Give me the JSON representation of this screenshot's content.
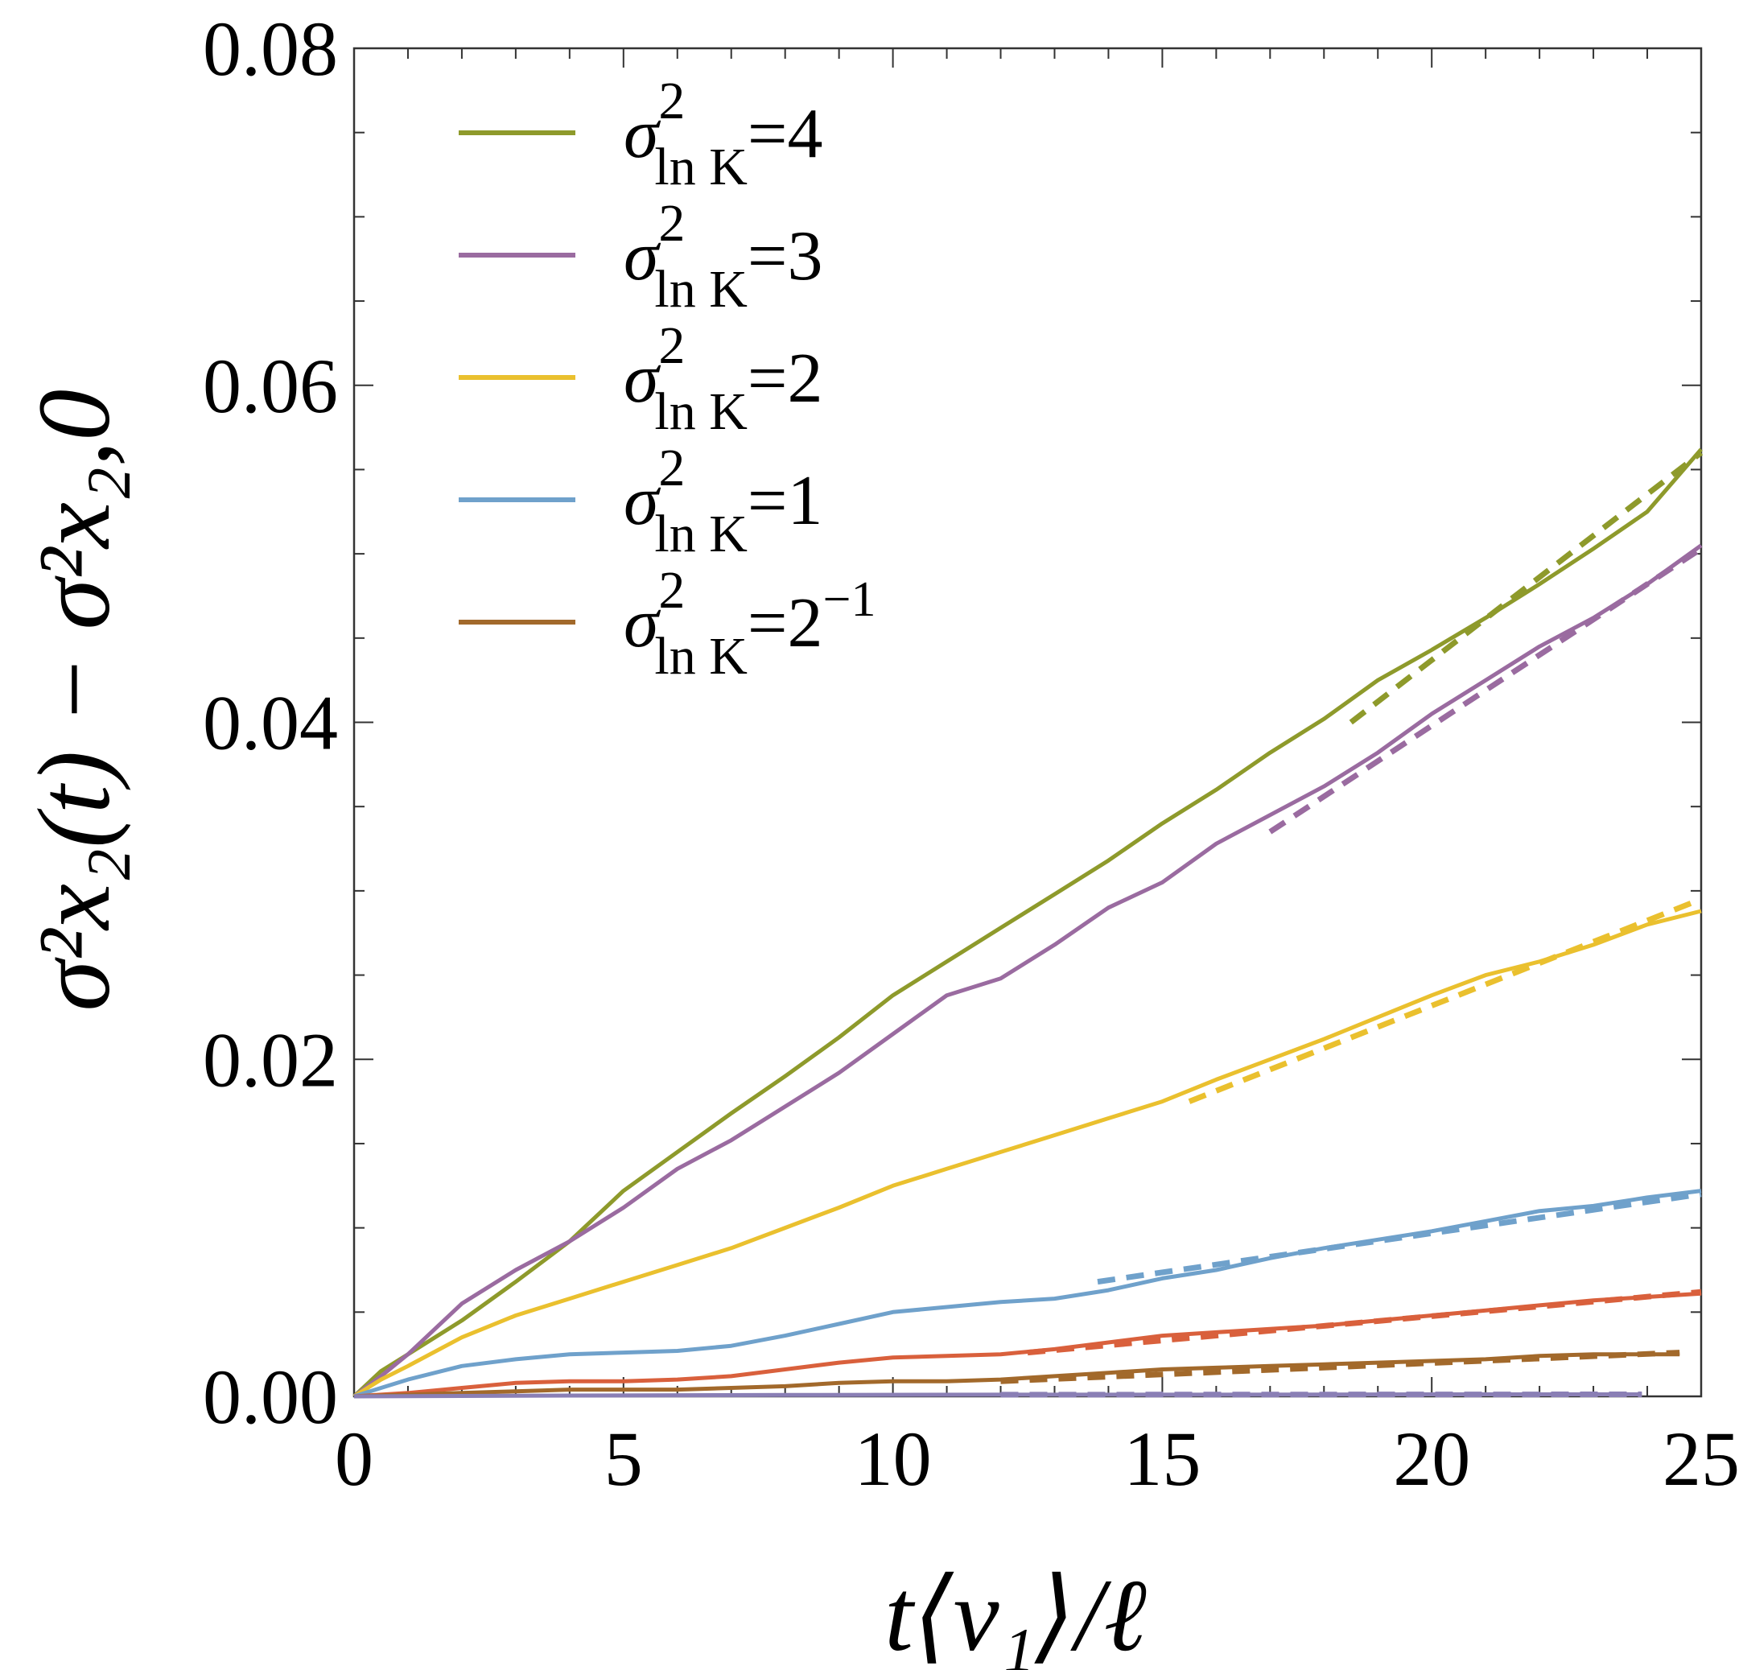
{
  "chart_data": {
    "type": "line",
    "xlabel": "t⟨v₁⟩/ℓ",
    "ylabel": "σ²x₂(t) − σ²x₂,0",
    "xlim": [
      0,
      25
    ],
    "ylim": [
      0,
      0.08
    ],
    "x_ticks": [
      0,
      5,
      10,
      15,
      20,
      25
    ],
    "x_tick_labels": [
      "0",
      "5",
      "10",
      "15",
      "20",
      "25"
    ],
    "y_ticks": [
      0,
      0.02,
      0.04,
      0.06,
      0.08
    ],
    "y_tick_labels": [
      "0.00",
      "0.02",
      "0.04",
      "0.06",
      "0.08"
    ],
    "grid": false,
    "legend_position": "top-left",
    "legend": [
      {
        "series": "s4",
        "symbol": "σ",
        "sup": "2",
        "sub": "ln K",
        "eq": "=4",
        "exp": ""
      },
      {
        "series": "s3",
        "symbol": "σ",
        "sup": "2",
        "sub": "ln K",
        "eq": "=3",
        "exp": ""
      },
      {
        "series": "s2",
        "symbol": "σ",
        "sup": "2",
        "sub": "ln K",
        "eq": "=2",
        "exp": ""
      },
      {
        "series": "s1",
        "symbol": "σ",
        "sup": "2",
        "sub": "ln K",
        "eq": "=1",
        "exp": ""
      },
      {
        "series": "s05",
        "symbol": "σ",
        "sup": "2",
        "sub": "ln K",
        "eq": "=2",
        "exp": "−1"
      }
    ],
    "series": [
      {
        "id": "s4",
        "name": "σ²ln K=4",
        "color": "#8E9A2B",
        "x": [
          0,
          0.5,
          1,
          2,
          3,
          4,
          5,
          6,
          7,
          8,
          9,
          10,
          11,
          12,
          13,
          14,
          15,
          16,
          17,
          18,
          19,
          20,
          21,
          22,
          23,
          24,
          25
        ],
        "y": [
          0,
          0.0015,
          0.0025,
          0.0045,
          0.0068,
          0.0092,
          0.0122,
          0.0145,
          0.0168,
          0.019,
          0.0213,
          0.0238,
          0.0258,
          0.0278,
          0.0298,
          0.0318,
          0.034,
          0.036,
          0.0382,
          0.0402,
          0.0425,
          0.0443,
          0.0462,
          0.0482,
          0.0503,
          0.0525,
          0.0562
        ],
        "fit": {
          "x": [
            18.5,
            25
          ],
          "y": [
            0.04,
            0.056
          ]
        }
      },
      {
        "id": "s3",
        "name": "σ²ln K=3",
        "color": "#9A6BA0",
        "x": [
          0,
          0.5,
          1,
          2,
          3,
          4,
          5,
          6,
          7,
          8,
          9,
          10,
          11,
          12,
          13,
          14,
          15,
          16,
          17,
          18,
          19,
          20,
          21,
          22,
          23,
          24,
          25
        ],
        "y": [
          0,
          0.0012,
          0.0025,
          0.0055,
          0.0075,
          0.0092,
          0.0112,
          0.0135,
          0.0152,
          0.0172,
          0.0192,
          0.0215,
          0.0238,
          0.0248,
          0.0268,
          0.029,
          0.0305,
          0.0328,
          0.0345,
          0.0362,
          0.0382,
          0.0405,
          0.0425,
          0.0445,
          0.0462,
          0.0482,
          0.0505
        ],
        "fit": {
          "x": [
            17,
            25
          ],
          "y": [
            0.0335,
            0.0503
          ]
        }
      },
      {
        "id": "s2",
        "name": "σ²ln K=2",
        "color": "#EAC02E",
        "x": [
          0,
          0.5,
          1,
          2,
          3,
          4,
          5,
          6,
          7,
          8,
          9,
          10,
          11,
          12,
          13,
          14,
          15,
          16,
          17,
          18,
          19,
          20,
          21,
          22,
          23,
          24,
          25
        ],
        "y": [
          0,
          0.001,
          0.0018,
          0.0035,
          0.0048,
          0.0058,
          0.0068,
          0.0078,
          0.0088,
          0.01,
          0.0112,
          0.0125,
          0.0135,
          0.0145,
          0.0155,
          0.0165,
          0.0175,
          0.0188,
          0.02,
          0.0212,
          0.0225,
          0.0238,
          0.025,
          0.0258,
          0.0268,
          0.028,
          0.0288
        ],
        "fit": {
          "x": [
            15.5,
            25
          ],
          "y": [
            0.0175,
            0.0295
          ]
        }
      },
      {
        "id": "s1",
        "name": "σ²ln K=1",
        "color": "#6FA1CB",
        "x": [
          0,
          0.5,
          1,
          2,
          3,
          4,
          5,
          6,
          7,
          8,
          9,
          10,
          11,
          12,
          13,
          14,
          15,
          16,
          17,
          18,
          19,
          20,
          21,
          22,
          23,
          24,
          25
        ],
        "y": [
          0,
          0.0005,
          0.001,
          0.0018,
          0.0022,
          0.0025,
          0.0026,
          0.0027,
          0.003,
          0.0036,
          0.0043,
          0.005,
          0.0053,
          0.0056,
          0.0058,
          0.0063,
          0.007,
          0.0075,
          0.0082,
          0.0088,
          0.0093,
          0.0098,
          0.0104,
          0.011,
          0.0113,
          0.0118,
          0.0122
        ],
        "fit": {
          "x": [
            13.8,
            25
          ],
          "y": [
            0.0068,
            0.012
          ]
        }
      },
      {
        "id": "sred",
        "name": "",
        "color": "#D9603C",
        "x": [
          0,
          1,
          2,
          3,
          4,
          5,
          6,
          7,
          8,
          9,
          10,
          11,
          12,
          13,
          14,
          15,
          16,
          17,
          18,
          19,
          20,
          21,
          22,
          23,
          24,
          25
        ],
        "y": [
          0,
          0.0002,
          0.0005,
          0.0008,
          0.0009,
          0.0009,
          0.001,
          0.0012,
          0.0016,
          0.002,
          0.0023,
          0.0024,
          0.0025,
          0.0028,
          0.0032,
          0.0036,
          0.0038,
          0.004,
          0.0042,
          0.0045,
          0.0048,
          0.0051,
          0.0054,
          0.0057,
          0.0059,
          0.0061
        ],
        "fit": {
          "x": [
            12.5,
            25
          ],
          "y": [
            0.0026,
            0.0062
          ]
        }
      },
      {
        "id": "s05",
        "name": "σ²ln K=2⁻¹",
        "color": "#A2692B",
        "x": [
          0,
          1,
          2,
          3,
          4,
          5,
          6,
          7,
          8,
          9,
          10,
          11,
          12,
          13,
          14,
          15,
          16,
          17,
          18,
          19,
          20,
          21,
          22,
          23,
          24,
          24.6
        ],
        "y": [
          0,
          0.0001,
          0.0002,
          0.0003,
          0.0004,
          0.0004,
          0.0004,
          0.0005,
          0.0006,
          0.0008,
          0.0009,
          0.0009,
          0.001,
          0.0012,
          0.0014,
          0.0016,
          0.0017,
          0.0018,
          0.0019,
          0.002,
          0.0021,
          0.0022,
          0.0024,
          0.0025,
          0.0025,
          0.0025
        ],
        "fit": {
          "x": [
            12,
            24.6
          ],
          "y": [
            0.0009,
            0.0026
          ]
        }
      },
      {
        "id": "spurple",
        "name": "",
        "color": "#8A7FB5",
        "x": [
          0,
          4,
          8,
          12,
          16,
          20,
          23.9
        ],
        "y": [
          0,
          5e-05,
          8e-05,
          0.0001,
          0.0001,
          0.00012,
          0.00012
        ],
        "fit": {
          "x": [
            12,
            23.9
          ],
          "y": [
            0.0001,
            0.00012
          ]
        }
      }
    ]
  }
}
